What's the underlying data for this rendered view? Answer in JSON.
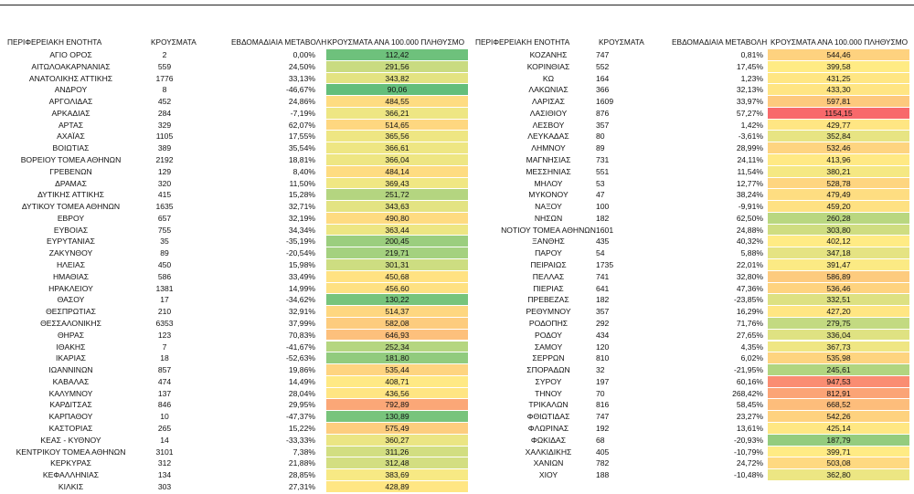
{
  "color_scale": [
    "#63be7b",
    "#ffeb84",
    "#f8696b"
  ],
  "tables": [
    {
      "header": [
        "ΠΕΡΙΦΕΡΕΙΑΚΗ ΕΝΟΤΗΤΑ",
        "ΚΡΟΥΣΜΑΤΑ",
        "ΕΒΔΟΜΑΔΙΑΙΑ ΜΕΤΑΒΟΛΗ",
        "ΚΡΟΥΣΜΑΤΑ ΑΝΑ 100.000 ΠΛΗΘΥΣΜΟ"
      ],
      "rows": [
        [
          "ΑΓΙΟ ΟΡΟΣ",
          "2",
          "0,00%",
          "112,42"
        ],
        [
          "ΑΙΤΩΛΟΑΚΑΡΝΑΝΙΑΣ",
          "559",
          "24,50%",
          "291,56"
        ],
        [
          "ΑΝΑΤΟΛΙΚΗΣ ΑΤΤΙΚΗΣ",
          "1776",
          "33,13%",
          "343,82"
        ],
        [
          "ΑΝΔΡΟΥ",
          "8",
          "-46,67%",
          "90,06"
        ],
        [
          "ΑΡΓΟΛΙΔΑΣ",
          "452",
          "24,86%",
          "484,55"
        ],
        [
          "ΑΡΚΑΔΙΑΣ",
          "284",
          "-7,19%",
          "366,21"
        ],
        [
          "ΑΡΤΑΣ",
          "329",
          "62,07%",
          "514,65"
        ],
        [
          "ΑΧΑΪΑΣ",
          "1105",
          "17,55%",
          "365,56"
        ],
        [
          "ΒΟΙΩΤΙΑΣ",
          "389",
          "35,54%",
          "366,61"
        ],
        [
          "ΒΟΡΕΙΟΥ ΤΟΜΕΑ ΑΘΗΝΩΝ",
          "2192",
          "18,81%",
          "366,04"
        ],
        [
          "ΓΡΕΒΕΝΩΝ",
          "129",
          "8,40%",
          "484,14"
        ],
        [
          "ΔΡΑΜΑΣ",
          "320",
          "11,50%",
          "369,43"
        ],
        [
          "ΔΥΤΙΚΗΣ ΑΤΤΙΚΗΣ",
          "415",
          "15,28%",
          "251,72"
        ],
        [
          "ΔΥΤΙΚΟΥ ΤΟΜΕΑ ΑΘΗΝΩΝ",
          "1635",
          "32,71%",
          "343,63"
        ],
        [
          "ΕΒΡΟΥ",
          "657",
          "32,19%",
          "490,80"
        ],
        [
          "ΕΥΒΟΙΑΣ",
          "755",
          "34,34%",
          "363,44"
        ],
        [
          "ΕΥΡΥΤΑΝΙΑΣ",
          "35",
          "-35,19%",
          "200,45"
        ],
        [
          "ΖΑΚΥΝΘΟΥ",
          "89",
          "-20,54%",
          "219,71"
        ],
        [
          "ΗΛΕΙΑΣ",
          "450",
          "15,98%",
          "301,31"
        ],
        [
          "ΗΜΑΘΙΑΣ",
          "586",
          "33,49%",
          "450,68"
        ],
        [
          "ΗΡΑΚΛΕΙΟΥ",
          "1381",
          "14,99%",
          "456,60"
        ],
        [
          "ΘΑΣΟΥ",
          "17",
          "-34,62%",
          "130,22"
        ],
        [
          "ΘΕΣΠΡΩΤΙΑΣ",
          "210",
          "32,91%",
          "514,37"
        ],
        [
          "ΘΕΣΣΑΛΟΝΙΚΗΣ",
          "6353",
          "37,99%",
          "582,08"
        ],
        [
          "ΘΗΡΑΣ",
          "123",
          "70,83%",
          "646,93"
        ],
        [
          "ΙΘΑΚΗΣ",
          "7",
          "-41,67%",
          "252,34"
        ],
        [
          "ΙΚΑΡΙΑΣ",
          "18",
          "-52,63%",
          "181,80"
        ],
        [
          "ΙΩΑΝΝΙΝΩΝ",
          "857",
          "19,86%",
          "535,44"
        ],
        [
          "ΚΑΒΑΛΑΣ",
          "474",
          "14,49%",
          "408,71"
        ],
        [
          "ΚΑΛΥΜΝΟΥ",
          "137",
          "28,04%",
          "436,56"
        ],
        [
          "ΚΑΡΔΙΤΣΑΣ",
          "846",
          "29,95%",
          "792,89"
        ],
        [
          "ΚΑΡΠΑΘΟΥ",
          "10",
          "-47,37%",
          "130,89"
        ],
        [
          "ΚΑΣΤΟΡΙΑΣ",
          "265",
          "15,22%",
          "575,49"
        ],
        [
          "ΚΕΑΣ - ΚΥΘΝΟΥ",
          "14",
          "-33,33%",
          "360,27"
        ],
        [
          "ΚΕΝΤΡΙΚΟΥ ΤΟΜΕΑ ΑΘΗΝΩΝ",
          "3101",
          "7,38%",
          "311,26"
        ],
        [
          "ΚΕΡΚΥΡΑΣ",
          "312",
          "21,88%",
          "312,48"
        ],
        [
          "ΚΕΦΑΛΛΗΝΙΑΣ",
          "134",
          "28,85%",
          "383,69"
        ],
        [
          "ΚΙΛΚΙΣ",
          "303",
          "27,31%",
          "428,89"
        ]
      ]
    },
    {
      "header": [
        "ΠΕΡΙΦΕΡΕΙΑΚΗ ΕΝΟΤΗΤΑ",
        "ΚΡΟΥΣΜΑΤΑ",
        "ΕΒΔΟΜΑΔΙΑΙΑ ΜΕΤΑΒΟΛΗ",
        "ΚΡΟΥΣΜΑΤΑ ΑΝΑ 100.000 ΠΛΗΘΥΣΜΟ"
      ],
      "rows": [
        [
          "ΚΟΖΑΝΗΣ",
          "747",
          "0,81%",
          "544,46"
        ],
        [
          "ΚΟΡΙΝΘΙΑΣ",
          "552",
          "17,45%",
          "399,58"
        ],
        [
          "ΚΩ",
          "164",
          "1,23%",
          "431,25"
        ],
        [
          "ΛΑΚΩΝΙΑΣ",
          "366",
          "32,13%",
          "433,30"
        ],
        [
          "ΛΑΡΙΣΑΣ",
          "1609",
          "33,97%",
          "597,81"
        ],
        [
          "ΛΑΣΙΘΙΟΥ",
          "876",
          "57,27%",
          "1154,15"
        ],
        [
          "ΛΕΣΒΟΥ",
          "357",
          "1,42%",
          "429,77"
        ],
        [
          "ΛΕΥΚΑΔΑΣ",
          "80",
          "-3,61%",
          "352,84"
        ],
        [
          "ΛΗΜΝΟΥ",
          "89",
          "28,99%",
          "532,46"
        ],
        [
          "ΜΑΓΝΗΣΙΑΣ",
          "731",
          "24,11%",
          "413,96"
        ],
        [
          "ΜΕΣΣΗΝΙΑΣ",
          "551",
          "11,54%",
          "380,21"
        ],
        [
          "ΜΗΛΟΥ",
          "53",
          "12,77%",
          "528,78"
        ],
        [
          "ΜΥΚΟΝΟΥ",
          "47",
          "38,24%",
          "479,49"
        ],
        [
          "ΝΑΞΟΥ",
          "100",
          "-9,91%",
          "459,20"
        ],
        [
          "ΝΗΣΩΝ",
          "182",
          "62,50%",
          "260,28"
        ],
        [
          "ΝΟΤΙΟΥ ΤΟΜΕΑ ΑΘΗΝΩΝ",
          "1601",
          "24,88%",
          "303,80"
        ],
        [
          "ΞΑΝΘΗΣ",
          "435",
          "40,32%",
          "402,12"
        ],
        [
          "ΠΑΡΟΥ",
          "54",
          "5,88%",
          "347,18"
        ],
        [
          "ΠΕΙΡΑΙΩΣ",
          "1735",
          "22,01%",
          "391,47"
        ],
        [
          "ΠΕΛΛΑΣ",
          "741",
          "32,80%",
          "586,89"
        ],
        [
          "ΠΙΕΡΙΑΣ",
          "641",
          "47,36%",
          "536,46"
        ],
        [
          "ΠΡΕΒΕΖΑΣ",
          "182",
          "-23,85%",
          "332,51"
        ],
        [
          "ΡΕΘΥΜΝΟΥ",
          "357",
          "16,29%",
          "427,20"
        ],
        [
          "ΡΟΔΟΠΗΣ",
          "292",
          "71,76%",
          "279,75"
        ],
        [
          "ΡΟΔΟΥ",
          "434",
          "27,65%",
          "336,04"
        ],
        [
          "ΣΑΜΟΥ",
          "120",
          "4,35%",
          "367,73"
        ],
        [
          "ΣΕΡΡΩΝ",
          "810",
          "6,02%",
          "535,98"
        ],
        [
          "ΣΠΟΡΑΔΩΝ",
          "32",
          "-21,95%",
          "245,61"
        ],
        [
          "ΣΥΡΟΥ",
          "197",
          "60,16%",
          "947,53"
        ],
        [
          "ΤΗΝΟΥ",
          "70",
          "268,42%",
          "812,91"
        ],
        [
          "ΤΡΙΚΑΛΩΝ",
          "816",
          "58,45%",
          "668,52"
        ],
        [
          "ΦΘΙΩΤΙΔΑΣ",
          "747",
          "23,27%",
          "542,26"
        ],
        [
          "ΦΛΩΡΙΝΑΣ",
          "192",
          "13,61%",
          "425,14"
        ],
        [
          "ΦΩΚΙΔΑΣ",
          "68",
          "-20,93%",
          "187,79"
        ],
        [
          "ΧΑΛΚΙΔΙΚΗΣ",
          "405",
          "-10,79%",
          "399,71"
        ],
        [
          "ΧΑΝΙΩΝ",
          "782",
          "24,72%",
          "503,08"
        ],
        [
          "ΧΙΟΥ",
          "188",
          "-10,48%",
          "362,80"
        ]
      ]
    }
  ]
}
